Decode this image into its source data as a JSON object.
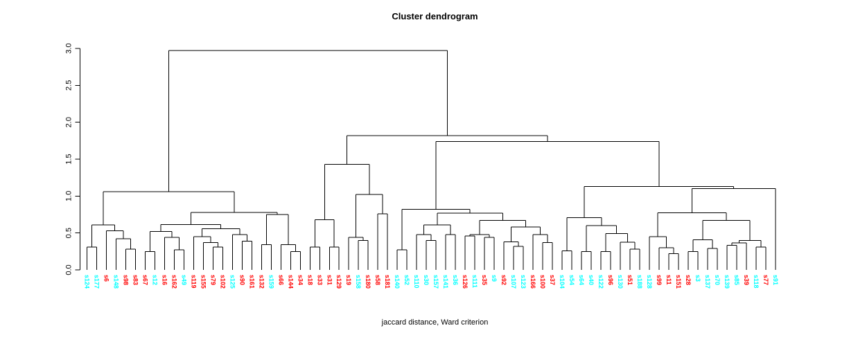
{
  "title": "Cluster dendrogram",
  "xlabel": "jaccard distance, Ward criterion",
  "chart_data": {
    "type": "dendrogram",
    "title": "Cluster dendrogram",
    "xlabel": "jaccard distance, Ward criterion",
    "ylabel": "",
    "ylim": [
      0,
      3
    ],
    "yticks": [
      0.0,
      0.5,
      1.0,
      1.5,
      2.0,
      2.5,
      3.0
    ],
    "grid": false,
    "legend": "none",
    "line_color": "#000000",
    "cluster_colors": {
      "red": "#FF0000",
      "cyan": "#00FFFF"
    },
    "leaves": [
      [
        "s124",
        "cyan"
      ],
      [
        "s177",
        "cyan"
      ],
      [
        "s6",
        "red"
      ],
      [
        "s148",
        "cyan"
      ],
      [
        "s98",
        "red"
      ],
      [
        "s83",
        "red"
      ],
      [
        "s67",
        "red"
      ],
      [
        "s12",
        "cyan"
      ],
      [
        "s16",
        "red"
      ],
      [
        "s162",
        "red"
      ],
      [
        "s49",
        "cyan"
      ],
      [
        "s119",
        "red"
      ],
      [
        "s155",
        "red"
      ],
      [
        "s79",
        "red"
      ],
      [
        "s102",
        "red"
      ],
      [
        "s125",
        "cyan"
      ],
      [
        "s90",
        "red"
      ],
      [
        "s161",
        "red"
      ],
      [
        "s132",
        "red"
      ],
      [
        "s159",
        "cyan"
      ],
      [
        "s66",
        "red"
      ],
      [
        "s144",
        "red"
      ],
      [
        "s34",
        "red"
      ],
      [
        "s18",
        "red"
      ],
      [
        "s33",
        "red"
      ],
      [
        "s31",
        "red"
      ],
      [
        "s129",
        "red"
      ],
      [
        "s19",
        "red"
      ],
      [
        "s158",
        "cyan"
      ],
      [
        "s180",
        "red"
      ],
      [
        "s58",
        "red"
      ],
      [
        "s181",
        "red"
      ],
      [
        "s140",
        "cyan"
      ],
      [
        "s52",
        "cyan"
      ],
      [
        "s110",
        "cyan"
      ],
      [
        "s30",
        "cyan"
      ],
      [
        "s157",
        "cyan"
      ],
      [
        "s141",
        "cyan"
      ],
      [
        "s36",
        "cyan"
      ],
      [
        "s126",
        "red"
      ],
      [
        "s111",
        "cyan"
      ],
      [
        "s35",
        "red"
      ],
      [
        "s9",
        "cyan"
      ],
      [
        "s92",
        "red"
      ],
      [
        "s107",
        "cyan"
      ],
      [
        "s123",
        "cyan"
      ],
      [
        "s166",
        "red"
      ],
      [
        "s100",
        "red"
      ],
      [
        "s37",
        "red"
      ],
      [
        "s104",
        "cyan"
      ],
      [
        "s54",
        "cyan"
      ],
      [
        "s64",
        "cyan"
      ],
      [
        "s40",
        "cyan"
      ],
      [
        "s122",
        "cyan"
      ],
      [
        "s96",
        "red"
      ],
      [
        "s130",
        "cyan"
      ],
      [
        "s51",
        "red"
      ],
      [
        "s188",
        "cyan"
      ],
      [
        "s128",
        "cyan"
      ],
      [
        "s99",
        "red"
      ],
      [
        "s11",
        "red"
      ],
      [
        "s151",
        "red"
      ],
      [
        "s28",
        "red"
      ],
      [
        "s3",
        "cyan"
      ],
      [
        "s137",
        "cyan"
      ],
      [
        "s70",
        "cyan"
      ],
      [
        "s139",
        "cyan"
      ],
      [
        "s85",
        "cyan"
      ],
      [
        "s39",
        "red"
      ],
      [
        "s118",
        "cyan"
      ],
      [
        "s77",
        "red"
      ],
      [
        "s91",
        "cyan"
      ]
    ],
    "tree": [
      2.97,
      [
        1.06,
        [
          0.61,
          [
            0.31,
            "s124",
            "s177"
          ],
          [
            0.53,
            "s6",
            [
              0.42,
              "s148",
              [
                0.28,
                "s98",
                "s83"
              ]
            ]
          ]
        ],
        [
          0.78,
          [
            0.615,
            [
              0.52,
              [
                0.25,
                "s67",
                "s12"
              ],
              [
                0.44,
                "s16",
                [
                  0.27,
                  "s162",
                  "s49"
                ]
              ]
            ],
            [
              0.56,
              [
                0.45,
                "s119",
                [
                  0.37,
                  "s155",
                  [
                    0.31,
                    "s79",
                    "s102"
                  ]
                ]
              ],
              [
                0.48,
                "s125",
                [
                  0.39,
                  "s90",
                  "s161"
                ]
              ]
            ]
          ],
          [
            0.75,
            [
              0.34,
              "s132",
              "s159"
            ],
            [
              0.34,
              "s66",
              [
                0.25,
                "s144",
                "s34"
              ]
            ]
          ]
        ]
      ],
      [
        1.82,
        [
          1.43,
          [
            0.68,
            [
              0.31,
              "s18",
              "s33"
            ],
            [
              0.31,
              "s31",
              "s129"
            ]
          ],
          [
            1.02,
            [
              0.44,
              "s19",
              [
                0.4,
                "s158",
                "s180"
              ]
            ],
            [
              0.76,
              "s58",
              "s181"
            ]
          ]
        ],
        [
          1.74,
          [
            0.82,
            [
              0.27,
              "s140",
              "s52"
            ],
            [
              0.77,
              [
                0.61,
                [
                  0.48,
                  "s110",
                  [
                    0.4,
                    "s30",
                    "s157"
                  ]
                ],
                [
                  0.48,
                  "s141",
                  "s36"
                ]
              ],
              [
                0.67,
                [
                  0.48,
                  [
                    0.46,
                    "s126",
                    "s111"
                  ],
                  [
                    0.44,
                    "s35",
                    "s9"
                  ]
                ],
                [
                  0.58,
                  [
                    0.38,
                    "s92",
                    [
                      0.32,
                      "s107",
                      "s123"
                    ]
                  ],
                  [
                    0.48,
                    "s166",
                    [
                      0.37,
                      "s100",
                      "s37"
                    ]
                  ]
                ]
              ]
            ]
          ],
          [
            1.13,
            [
              0.71,
              [
                0.26,
                "s104",
                "s54"
              ],
              [
                0.6,
                [
                  0.25,
                  "s64",
                  "s40"
                ],
                [
                  0.49,
                  [
                    0.25,
                    "s122",
                    "s96"
                  ],
                  [
                    0.375,
                    "s130",
                    [
                      0.28,
                      "s51",
                      "s188"
                    ]
                  ]
                ]
              ]
            ],
            [
              1.1,
              [
                0.775,
                [
                  0.45,
                  "s128",
                  [
                    0.3,
                    "s99",
                    [
                      0.22,
                      "s11",
                      "s151"
                    ]
                  ]
                ],
                [
                  0.67,
                  [
                    0.41,
                    [
                      0.25,
                      "s28",
                      "s3"
                    ],
                    [
                      0.29,
                      "s137",
                      "s70"
                    ]
                  ],
                  [
                    0.4,
                    [
                      0.365,
                      [
                        0.335,
                        "s139",
                        "s85"
                      ],
                      "s39"
                    ],
                    [
                      0.31,
                      "s118",
                      "s77"
                    ]
                  ]
                ]
              ],
              "s91"
            ]
          ]
        ]
      ]
    ]
  }
}
